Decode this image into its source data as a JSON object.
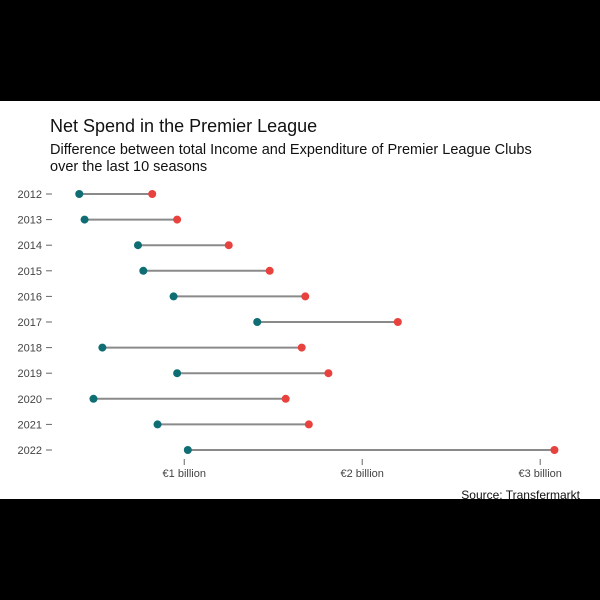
{
  "header": {
    "title": "Net Spend in the Premier League",
    "subtitle_line1": "Difference between total Income and Expenditure of Premier League Clubs",
    "subtitle_line2": "over the last 10 seasons"
  },
  "footer": {
    "source": "Source: Transfermarkt"
  },
  "colors": {
    "start_dot": "#0e6e74",
    "end_dot": "#e8423f",
    "connector": "#8a8a8a",
    "axis_text": "#444444"
  },
  "chart_data": {
    "type": "dumbbell",
    "title": "Net Spend in the Premier League",
    "subtitle": "Difference between total Income and Expenditure of Premier League Clubs over the last 10 seasons",
    "xlabel": "",
    "ylabel": "",
    "x_unit": "€ billion",
    "xlim": [
      0.33,
      3.1
    ],
    "x_ticks": [
      {
        "value": 1,
        "label": "€1 billion"
      },
      {
        "value": 2,
        "label": "€2 billion"
      },
      {
        "value": 3,
        "label": "€3 billion"
      }
    ],
    "grid": false,
    "categories": [
      "2012",
      "2013",
      "2014",
      "2015",
      "2016",
      "2017",
      "2018",
      "2019",
      "2020",
      "2021",
      "2022"
    ],
    "series": [
      {
        "values": [
          0.41,
          0.44,
          0.74,
          0.77,
          0.94,
          1.41,
          0.54,
          0.96,
          0.49,
          0.85,
          1.02
        ]
      },
      {
        "values": [
          0.82,
          0.96,
          1.25,
          1.48,
          1.68,
          2.2,
          1.66,
          1.81,
          1.57,
          1.7,
          3.08
        ]
      }
    ]
  }
}
